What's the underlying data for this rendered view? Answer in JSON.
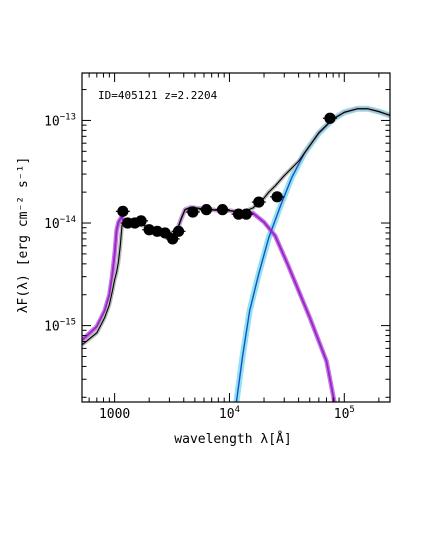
{
  "chart_data": {
    "type": "line",
    "title": "",
    "annotation": "ID=405121 z=2.2204",
    "xlabel": "wavelength λ[Å]",
    "ylabel": "λF(λ) [erg cm⁻² s⁻¹]",
    "x_scale": "log",
    "y_scale": "log",
    "xlim": [
      520,
      250000
    ],
    "ylim": [
      1.8e-16,
      2.9e-13
    ],
    "x_ticks": [
      {
        "value": 1000,
        "label": "1000"
      },
      {
        "value": 10000,
        "base": "10",
        "exp": "4"
      },
      {
        "value": 100000,
        "base": "10",
        "exp": "5"
      }
    ],
    "y_ticks": [
      {
        "value": 1e-15,
        "base": "10",
        "exp": "−15"
      },
      {
        "value": 1e-14,
        "base": "10",
        "exp": "−14"
      },
      {
        "value": 1e-13,
        "base": "10",
        "exp": "−13"
      }
    ],
    "grid": false,
    "colors": {
      "total_model": "#000000",
      "stellar_model": "#9b22cc",
      "stellar_band": "#c27ae0",
      "dust_model": "#1a4fc7",
      "dust_band": "#8fe3f0",
      "data_points": "#000000"
    },
    "observed_points": {
      "x": [
        1180,
        1300,
        1500,
        1700,
        2000,
        2350,
        2750,
        3200,
        3600,
        4800,
        6300,
        8700,
        12000,
        14000,
        18000,
        26000,
        75000
      ],
      "y": [
        1.3e-14,
        1e-14,
        1e-14,
        1.05e-14,
        8.6e-15,
        8.3e-15,
        8e-15,
        7e-15,
        8.3e-15,
        1.28e-14,
        1.35e-14,
        1.35e-14,
        1.22e-14,
        1.22e-14,
        1.6e-14,
        1.8e-14,
        1.05e-13
      ]
    },
    "series": [
      {
        "key": "stellar",
        "x": [
          520,
          700,
          820,
          900,
          950,
          1000,
          1040,
          1080,
          1150,
          1210,
          1300,
          1500,
          1800,
          2100,
          2600,
          3000,
          3300,
          3500,
          3800,
          4100,
          4600,
          6000,
          8000,
          10000,
          13000,
          16000,
          20000,
          25000,
          32000,
          50000,
          70000,
          82000
        ],
        "y": [
          7.2e-16,
          9.8e-16,
          1.4e-15,
          2e-15,
          3e-15,
          5e-15,
          8.5e-15,
          1.02e-14,
          1.15e-14,
          1.03e-14,
          1e-14,
          9.8e-15,
          9.5e-15,
          8.6e-15,
          8e-15,
          7.5e-15,
          7.9e-15,
          8.5e-15,
          1.1e-14,
          1.35e-14,
          1.42e-14,
          1.37e-14,
          1.33e-14,
          1.32e-14,
          1.27e-14,
          1.25e-14,
          1.02e-14,
          7.5e-15,
          4e-15,
          1.2e-15,
          4.5e-16,
          1.8e-16
        ]
      },
      {
        "key": "dust",
        "x": [
          11500,
          13000,
          15000,
          18000,
          22000,
          28000,
          35000,
          45000,
          60000,
          80000,
          100000,
          130000,
          160000,
          200000,
          250000
        ],
        "y": [
          1.8e-16,
          5e-16,
          1.4e-15,
          3.2e-15,
          7.2e-15,
          1.5e-14,
          2.8e-14,
          4.8e-14,
          7.5e-14,
          1.03e-13,
          1.2e-13,
          1.3e-13,
          1.3e-13,
          1.22e-13,
          1.12e-13
        ]
      },
      {
        "key": "total",
        "x": [
          520,
          700,
          820,
          900,
          950,
          1000,
          1040,
          1080,
          1120,
          1160,
          1200,
          1300,
          1500,
          1800,
          2100,
          2600,
          3000,
          3300,
          3500,
          3800,
          4100,
          4600,
          6000,
          8000,
          10000,
          13000,
          16000,
          20000,
          22000,
          25000,
          30000,
          40000,
          60000,
          80000,
          100000,
          130000,
          160000,
          200000,
          250000
        ],
        "y": [
          6.5e-16,
          8.5e-16,
          1.2e-15,
          1.6e-15,
          2.1e-15,
          2.8e-15,
          3.3e-15,
          4.2e-15,
          6e-15,
          9.5e-15,
          1.02e-14,
          1e-14,
          9.8e-15,
          9.5e-15,
          8.6e-15,
          8e-15,
          7.5e-15,
          7.9e-15,
          8.5e-15,
          1.1e-14,
          1.35e-14,
          1.42e-14,
          1.37e-14,
          1.33e-14,
          1.32e-14,
          1.28e-14,
          1.4e-14,
          1.75e-14,
          2e-14,
          2.3e-14,
          2.9e-14,
          4e-14,
          7.6e-14,
          1.04e-13,
          1.2e-13,
          1.3e-13,
          1.3e-13,
          1.22e-13,
          1.12e-13
        ]
      }
    ]
  }
}
